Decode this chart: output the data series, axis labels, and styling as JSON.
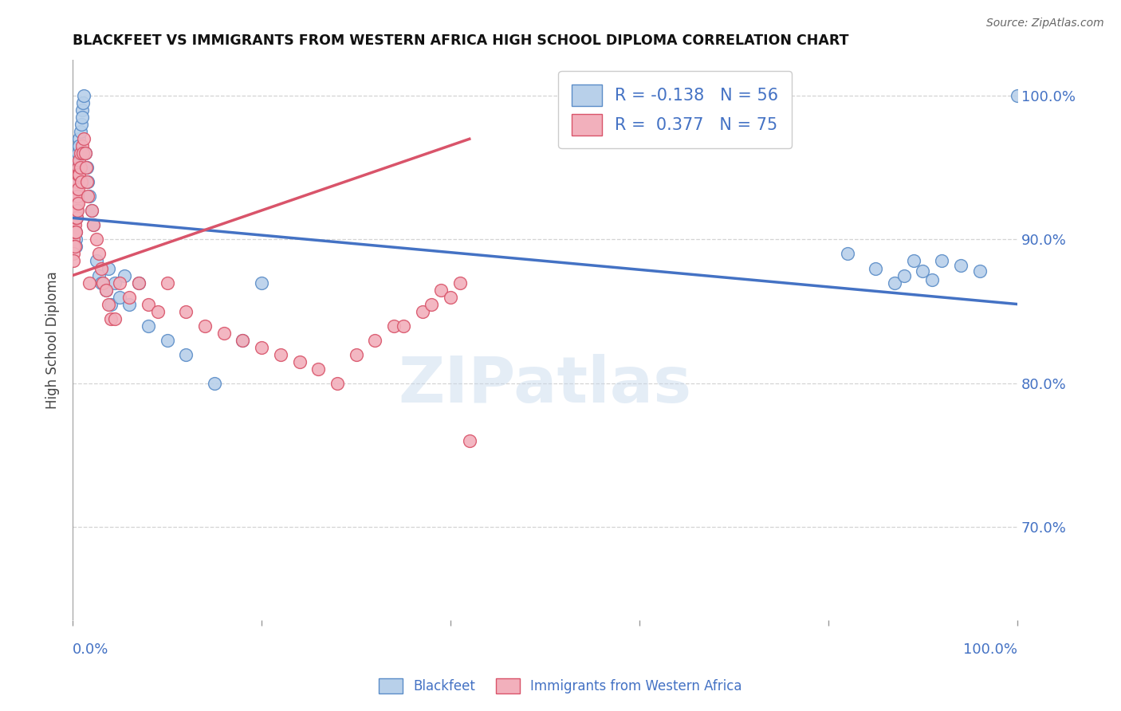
{
  "title": "BLACKFEET VS IMMIGRANTS FROM WESTERN AFRICA HIGH SCHOOL DIPLOMA CORRELATION CHART",
  "source": "Source: ZipAtlas.com",
  "ylabel": "High School Diploma",
  "legend_blue_r": "-0.138",
  "legend_blue_n": "56",
  "legend_pink_r": "0.377",
  "legend_pink_n": "75",
  "legend_blue_label": "Blackfeet",
  "legend_pink_label": "Immigrants from Western Africa",
  "blue_color": "#b8d0ea",
  "blue_edge_color": "#5b8dc8",
  "pink_color": "#f2b0bc",
  "pink_edge_color": "#d9546a",
  "blue_line_color": "#4472c4",
  "pink_line_color": "#d9546a",
  "blue_scatter_x": [
    0.001,
    0.001,
    0.002,
    0.002,
    0.003,
    0.003,
    0.003,
    0.004,
    0.004,
    0.005,
    0.005,
    0.005,
    0.006,
    0.006,
    0.007,
    0.007,
    0.008,
    0.009,
    0.01,
    0.01,
    0.011,
    0.012,
    0.013,
    0.015,
    0.016,
    0.018,
    0.02,
    0.022,
    0.025,
    0.028,
    0.03,
    0.035,
    0.038,
    0.04,
    0.045,
    0.05,
    0.055,
    0.06,
    0.07,
    0.08,
    0.1,
    0.12,
    0.15,
    0.18,
    0.2,
    0.82,
    0.85,
    0.87,
    0.88,
    0.89,
    0.9,
    0.91,
    0.92,
    0.94,
    0.96,
    1.0
  ],
  "blue_scatter_y": [
    0.92,
    0.91,
    0.935,
    0.945,
    0.905,
    0.9,
    0.895,
    0.92,
    0.915,
    0.93,
    0.94,
    0.955,
    0.945,
    0.96,
    0.97,
    0.965,
    0.975,
    0.98,
    0.99,
    0.985,
    0.995,
    1.0,
    0.96,
    0.95,
    0.94,
    0.93,
    0.92,
    0.91,
    0.885,
    0.875,
    0.87,
    0.865,
    0.88,
    0.855,
    0.87,
    0.86,
    0.875,
    0.855,
    0.87,
    0.84,
    0.83,
    0.82,
    0.8,
    0.83,
    0.87,
    0.89,
    0.88,
    0.87,
    0.875,
    0.885,
    0.878,
    0.872,
    0.885,
    0.882,
    0.878,
    1.0
  ],
  "pink_scatter_x": [
    0.0,
    0.0,
    0.001,
    0.001,
    0.001,
    0.001,
    0.001,
    0.002,
    0.002,
    0.002,
    0.002,
    0.003,
    0.003,
    0.003,
    0.003,
    0.003,
    0.004,
    0.004,
    0.004,
    0.005,
    0.005,
    0.005,
    0.005,
    0.006,
    0.006,
    0.006,
    0.006,
    0.007,
    0.007,
    0.008,
    0.008,
    0.009,
    0.01,
    0.011,
    0.012,
    0.013,
    0.014,
    0.015,
    0.016,
    0.018,
    0.02,
    0.022,
    0.025,
    0.028,
    0.03,
    0.032,
    0.035,
    0.038,
    0.04,
    0.045,
    0.05,
    0.06,
    0.07,
    0.08,
    0.09,
    0.1,
    0.12,
    0.14,
    0.16,
    0.18,
    0.2,
    0.22,
    0.24,
    0.26,
    0.28,
    0.3,
    0.32,
    0.34,
    0.35,
    0.37,
    0.38,
    0.39,
    0.4,
    0.41,
    0.42
  ],
  "pink_scatter_y": [
    0.905,
    0.895,
    0.91,
    0.9,
    0.895,
    0.89,
    0.885,
    0.92,
    0.91,
    0.905,
    0.895,
    0.93,
    0.925,
    0.92,
    0.915,
    0.905,
    0.935,
    0.925,
    0.915,
    0.945,
    0.94,
    0.93,
    0.92,
    0.95,
    0.945,
    0.935,
    0.925,
    0.955,
    0.945,
    0.96,
    0.95,
    0.94,
    0.965,
    0.96,
    0.97,
    0.96,
    0.95,
    0.94,
    0.93,
    0.87,
    0.92,
    0.91,
    0.9,
    0.89,
    0.88,
    0.87,
    0.865,
    0.855,
    0.845,
    0.845,
    0.87,
    0.86,
    0.87,
    0.855,
    0.85,
    0.87,
    0.85,
    0.84,
    0.835,
    0.83,
    0.825,
    0.82,
    0.815,
    0.81,
    0.8,
    0.82,
    0.83,
    0.84,
    0.84,
    0.85,
    0.855,
    0.865,
    0.86,
    0.87,
    0.76
  ],
  "xlim": [
    0.0,
    1.0
  ],
  "ylim": [
    0.635,
    1.025
  ],
  "yticks": [
    0.7,
    0.8,
    0.9,
    1.0
  ],
  "ytick_labels": [
    "70.0%",
    "80.0%",
    "90.0%",
    "100.0%"
  ],
  "watermark": "ZIPatlas",
  "grid_color": "#d0d0d0",
  "background_color": "#ffffff"
}
